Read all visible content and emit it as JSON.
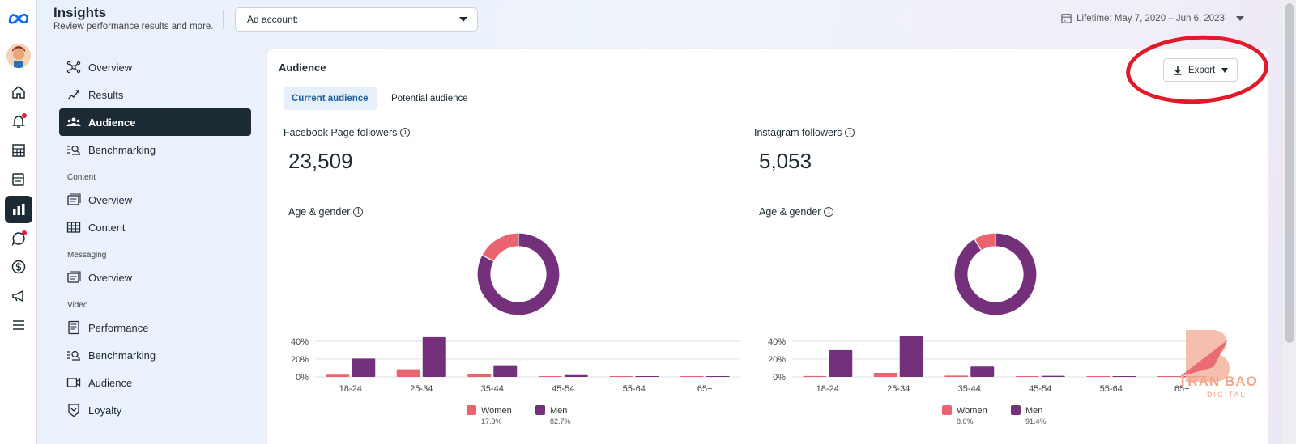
{
  "header": {
    "title": "Insights",
    "subtitle": "Review performance results and more.",
    "ad_account_label": "Ad account:",
    "date_range": "Lifetime: May 7, 2020 – Jun 6, 2023"
  },
  "rail_icons": [
    "meta-logo-icon",
    "avatar",
    "home-icon",
    "bell-icon",
    "table-icon",
    "pages-icon",
    "insights-icon",
    "chat-icon",
    "dollar-icon",
    "megaphone-icon",
    "menu-icon"
  ],
  "nav": {
    "items_top": [
      {
        "label": "Overview",
        "icon": "overview-icon"
      },
      {
        "label": "Results",
        "icon": "results-icon"
      },
      {
        "label": "Audience",
        "icon": "audience-icon"
      },
      {
        "label": "Benchmarking",
        "icon": "benchmarking-icon"
      }
    ],
    "content_header": "Content",
    "content_items": [
      {
        "label": "Overview",
        "icon": "overview-icon"
      },
      {
        "label": "Content",
        "icon": "content-icon"
      }
    ],
    "messaging_header": "Messaging",
    "messaging_items": [
      {
        "label": "Overview",
        "icon": "overview-icon"
      }
    ],
    "video_header": "Video",
    "video_items": [
      {
        "label": "Performance",
        "icon": "performance-icon"
      },
      {
        "label": "Benchmarking",
        "icon": "benchmarking-icon"
      },
      {
        "label": "Audience",
        "icon": "audience-icon"
      },
      {
        "label": "Loyalty",
        "icon": "loyalty-icon"
      }
    ]
  },
  "main": {
    "title": "Audience",
    "tabs": [
      {
        "label": "Current audience",
        "active": true
      },
      {
        "label": "Potential audience",
        "active": false
      }
    ],
    "export_label": "Export",
    "facebook": {
      "label": "Facebook Page followers",
      "count": "23,509",
      "section_label": "Age & gender",
      "women_pct": "17.3%",
      "men_pct": "82.7%"
    },
    "instagram": {
      "label": "Instagram followers",
      "count": "5,053",
      "section_label": "Age & gender",
      "women_pct": "8.6%",
      "men_pct": "91.4%"
    },
    "legend": {
      "women": "Women",
      "men": "Men"
    }
  },
  "colors": {
    "women": "#e9646e",
    "men": "#74307b",
    "accent": "#1c2b33",
    "highlight_ring": "#e0192b"
  },
  "watermark": {
    "title": "TRAN BAO",
    "sub": "DIGITAL"
  },
  "chart_data": [
    {
      "type": "donut",
      "title": "Facebook Page followers – Age & gender",
      "categories": [
        "Women",
        "Men"
      ],
      "values": [
        17.3,
        82.7
      ]
    },
    {
      "type": "bar",
      "title": "Facebook Page followers – Age & gender",
      "categories": [
        "18-24",
        "25-34",
        "35-44",
        "45-54",
        "55-64",
        "65+"
      ],
      "series": [
        {
          "name": "Women",
          "values": [
            2.5,
            8.5,
            3.0,
            0.6,
            0.3,
            0.2
          ]
        },
        {
          "name": "Men",
          "values": [
            20.5,
            44.5,
            13.0,
            2.0,
            0.6,
            0.3
          ]
        }
      ],
      "yticks": [
        "0%",
        "20%",
        "40%"
      ],
      "ylim": [
        0,
        48
      ]
    },
    {
      "type": "donut",
      "title": "Instagram followers – Age & gender",
      "categories": [
        "Women",
        "Men"
      ],
      "values": [
        8.6,
        91.4
      ]
    },
    {
      "type": "bar",
      "title": "Instagram followers – Age & gender",
      "categories": [
        "18-24",
        "25-34",
        "35-44",
        "45-54",
        "55-64",
        "65+"
      ],
      "series": [
        {
          "name": "Women",
          "values": [
            1.0,
            4.5,
            1.5,
            0.4,
            0.3,
            0.2
          ]
        },
        {
          "name": "Men",
          "values": [
            30.0,
            46.0,
            11.5,
            1.2,
            0.5,
            0.3
          ]
        }
      ],
      "yticks": [
        "0%",
        "20%",
        "40%"
      ],
      "ylim": [
        0,
        48
      ]
    }
  ]
}
